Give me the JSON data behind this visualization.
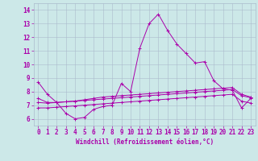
{
  "title": "",
  "xlabel": "Windchill (Refroidissement éolien,°C)",
  "ylabel": "",
  "background_color": "#cce8e8",
  "line_color": "#aa00aa",
  "grid_color": "#aabbcc",
  "xlim": [
    -0.5,
    23.5
  ],
  "ylim": [
    5.5,
    14.5
  ],
  "yticks": [
    6,
    7,
    8,
    9,
    10,
    11,
    12,
    13,
    14
  ],
  "xticks": [
    0,
    1,
    2,
    3,
    4,
    5,
    6,
    7,
    8,
    9,
    10,
    11,
    12,
    13,
    14,
    15,
    16,
    17,
    18,
    19,
    20,
    21,
    22,
    23
  ],
  "series1": [
    8.7,
    7.8,
    7.2,
    6.4,
    6.0,
    6.1,
    6.7,
    6.9,
    7.0,
    8.6,
    8.0,
    11.2,
    13.0,
    13.7,
    12.5,
    11.5,
    10.8,
    10.1,
    10.2,
    8.8,
    8.2,
    8.1,
    6.8,
    7.5
  ],
  "series2": [
    7.5,
    7.2,
    7.2,
    7.25,
    7.3,
    7.4,
    7.5,
    7.6,
    7.65,
    7.7,
    7.75,
    7.8,
    7.85,
    7.9,
    7.95,
    8.0,
    8.05,
    8.1,
    8.15,
    8.2,
    8.25,
    8.3,
    7.8,
    7.6
  ],
  "series3": [
    7.2,
    7.15,
    7.2,
    7.25,
    7.3,
    7.35,
    7.4,
    7.45,
    7.5,
    7.55,
    7.6,
    7.65,
    7.7,
    7.75,
    7.8,
    7.85,
    7.9,
    7.95,
    8.0,
    8.05,
    8.1,
    8.15,
    7.7,
    7.55
  ],
  "series4": [
    6.8,
    6.8,
    6.85,
    6.9,
    6.95,
    7.0,
    7.05,
    7.1,
    7.15,
    7.2,
    7.25,
    7.3,
    7.35,
    7.4,
    7.45,
    7.5,
    7.55,
    7.6,
    7.65,
    7.7,
    7.75,
    7.8,
    7.3,
    7.15
  ],
  "tick_fontsize": 5.5,
  "xlabel_fontsize": 5.5
}
